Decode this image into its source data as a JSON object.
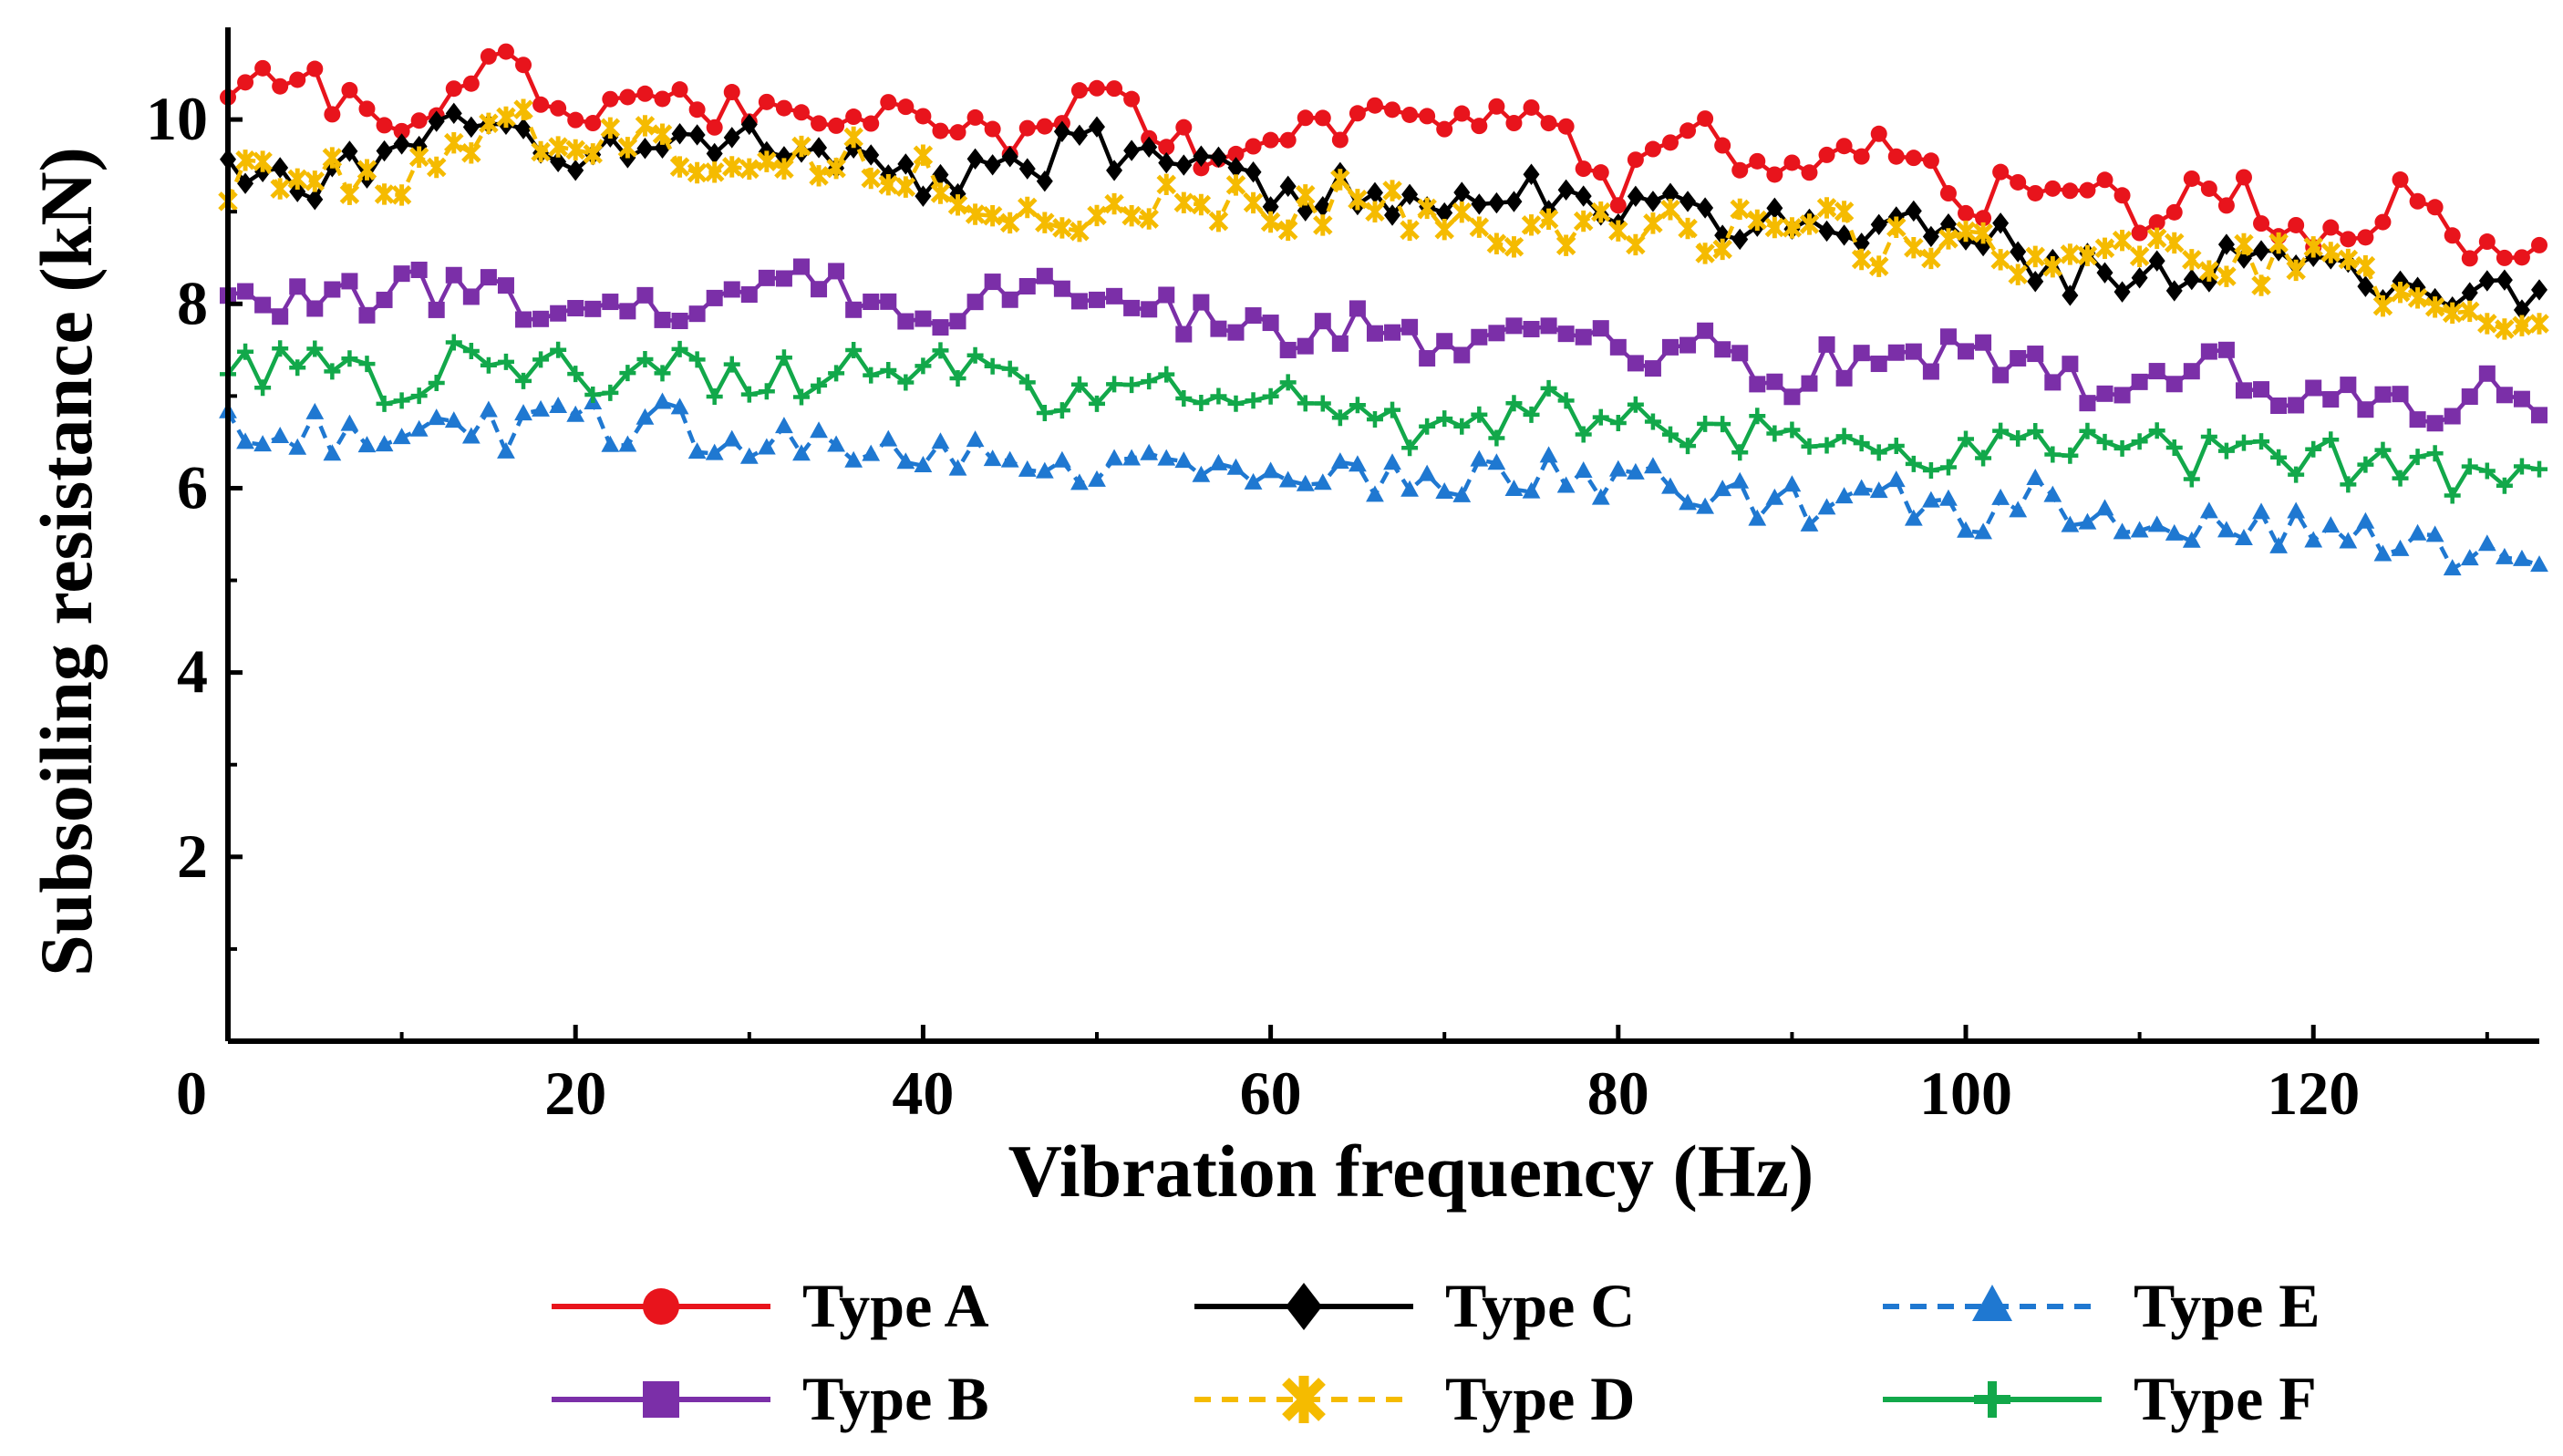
{
  "chart_data": {
    "type": "line",
    "title": "",
    "xlabel": "Vibration frequency (Hz)",
    "ylabel": "Subsoiling resistance (kN)",
    "xlim": [
      0,
      133
    ],
    "ylim": [
      0,
      11
    ],
    "xticks": [
      0,
      20,
      40,
      60,
      80,
      100,
      120
    ],
    "xtick_labels": [
      "0",
      "20",
      "40",
      "60",
      "80",
      "100",
      "120"
    ],
    "yticks": [
      2,
      4,
      6,
      8,
      10
    ],
    "ytick_labels": [
      "2",
      "4",
      "6",
      "8",
      "10"
    ],
    "legend_position": "bottom",
    "series": [
      {
        "name": "Type A",
        "color": "#e8141c",
        "dash": "solid",
        "marker": "circle",
        "x": [
          0,
          5,
          10,
          15,
          20,
          25,
          30,
          35,
          40,
          45,
          50,
          55,
          60,
          65,
          70,
          75,
          80,
          85,
          90,
          95,
          100,
          105,
          110,
          115,
          120,
          125,
          130,
          133
        ],
        "values": [
          10.4,
          10.4,
          9.9,
          10.6,
          10.2,
          10.1,
          10.1,
          10.1,
          10.0,
          9.8,
          10.4,
          9.7,
          9.6,
          10.1,
          9.9,
          10.0,
          9.3,
          9.8,
          9.3,
          9.9,
          9.0,
          9.5,
          9.0,
          9.3,
          8.7,
          9.1,
          8.5,
          8.5
        ]
      },
      {
        "name": "Type B",
        "color": "#7b2fa8",
        "dash": "solid",
        "marker": "square",
        "x": [
          0,
          5,
          10,
          15,
          20,
          25,
          30,
          35,
          40,
          45,
          50,
          55,
          60,
          65,
          70,
          75,
          80,
          85,
          90,
          95,
          100,
          105,
          110,
          115,
          120,
          125,
          130,
          133
        ],
        "values": [
          8.0,
          8.0,
          8.2,
          8.1,
          8.0,
          7.9,
          8.1,
          8.2,
          7.7,
          8.2,
          8.0,
          7.9,
          7.6,
          7.8,
          7.4,
          7.6,
          7.5,
          7.6,
          7.2,
          7.5,
          7.4,
          7.2,
          7.1,
          7.4,
          6.9,
          6.9,
          7.0,
          6.7
        ]
      },
      {
        "name": "Type C",
        "color": "#000000",
        "dash": "solid",
        "marker": "diamond",
        "x": [
          0,
          5,
          10,
          15,
          20,
          25,
          30,
          35,
          40,
          45,
          50,
          55,
          60,
          65,
          70,
          75,
          80,
          85,
          90,
          95,
          100,
          105,
          110,
          115,
          120,
          125,
          130,
          133
        ],
        "values": [
          9.5,
          9.3,
          9.8,
          9.9,
          9.6,
          9.6,
          9.9,
          9.6,
          9.4,
          9.5,
          9.7,
          9.5,
          9.2,
          9.2,
          9.1,
          9.3,
          9.0,
          9.0,
          8.8,
          8.9,
          8.9,
          8.3,
          8.3,
          8.4,
          8.3,
          8.2,
          8.2,
          8.1
        ]
      },
      {
        "name": "Type D",
        "color": "#f5bb00",
        "dash": "dashed",
        "marker": "asterisk",
        "x": [
          0,
          5,
          10,
          15,
          20,
          25,
          30,
          35,
          40,
          45,
          50,
          55,
          60,
          65,
          70,
          75,
          80,
          85,
          90,
          95,
          100,
          105,
          110,
          115,
          120,
          125,
          130,
          133
        ],
        "values": [
          9.3,
          9.4,
          9.3,
          9.9,
          9.8,
          9.8,
          9.3,
          9.7,
          9.4,
          9.0,
          8.9,
          9.3,
          8.9,
          9.2,
          8.8,
          8.8,
          8.9,
          8.7,
          9.0,
          8.6,
          8.6,
          8.4,
          8.7,
          8.4,
          8.5,
          8.1,
          7.9,
          7.9
        ]
      },
      {
        "name": "Type E",
        "color": "#1f78d1",
        "dash": "dashed",
        "marker": "triangle",
        "x": [
          0,
          5,
          10,
          15,
          20,
          25,
          30,
          35,
          40,
          45,
          50,
          55,
          60,
          65,
          70,
          75,
          80,
          85,
          90,
          95,
          100,
          105,
          110,
          115,
          120,
          125,
          130,
          133
        ],
        "values": [
          6.6,
          6.6,
          6.6,
          6.6,
          6.7,
          6.7,
          6.4,
          6.5,
          6.4,
          6.3,
          6.2,
          6.2,
          6.3,
          6.1,
          6.1,
          6.1,
          6.1,
          6.0,
          5.8,
          5.9,
          5.7,
          5.9,
          5.6,
          5.5,
          5.6,
          5.4,
          5.3,
          5.0
        ]
      },
      {
        "name": "Type F",
        "color": "#12a84a",
        "dash": "solid",
        "marker": "plus",
        "x": [
          0,
          5,
          10,
          15,
          20,
          25,
          30,
          35,
          40,
          45,
          50,
          55,
          60,
          65,
          70,
          75,
          80,
          85,
          90,
          95,
          100,
          105,
          110,
          115,
          120,
          125,
          130,
          133
        ],
        "values": [
          7.3,
          7.3,
          7.1,
          7.5,
          7.2,
          7.3,
          7.1,
          7.3,
          7.4,
          7.1,
          7.0,
          7.2,
          7.0,
          6.8,
          6.6,
          6.9,
          6.7,
          6.6,
          6.6,
          6.5,
          6.4,
          6.4,
          6.4,
          6.3,
          6.3,
          6.2,
          6.1,
          6.0
        ]
      }
    ]
  }
}
